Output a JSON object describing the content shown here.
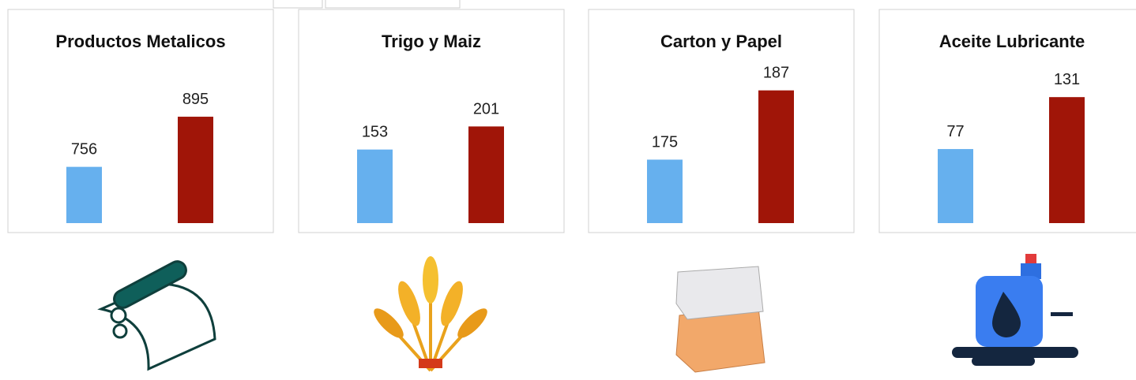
{
  "chart_data": [
    {
      "type": "bar",
      "title": "Productos Metalicos",
      "categories": [
        null,
        null
      ],
      "values": [
        756,
        895
      ],
      "colors": [
        "#66b0ee",
        "#a01508"
      ],
      "ylim": [
        600,
        1000
      ]
    },
    {
      "type": "bar",
      "title": "Trigo y Maiz",
      "categories": [
        null,
        null
      ],
      "values": [
        153,
        201
      ],
      "colors": [
        "#66b0ee",
        "#a01508"
      ],
      "ylim": [
        0,
        300
      ]
    },
    {
      "type": "bar",
      "title": "Carton y Papel",
      "categories": [
        null,
        null
      ],
      "values": [
        175,
        187
      ],
      "colors": [
        "#66b0ee",
        "#a01508"
      ],
      "ylim": [
        164,
        189
      ]
    },
    {
      "type": "bar",
      "title": "Aceite Lubricante",
      "categories": [
        null,
        null
      ],
      "values": [
        77,
        131
      ],
      "colors": [
        "#66b0ee",
        "#a01508"
      ],
      "ylim": [
        0,
        150
      ]
    }
  ]
}
